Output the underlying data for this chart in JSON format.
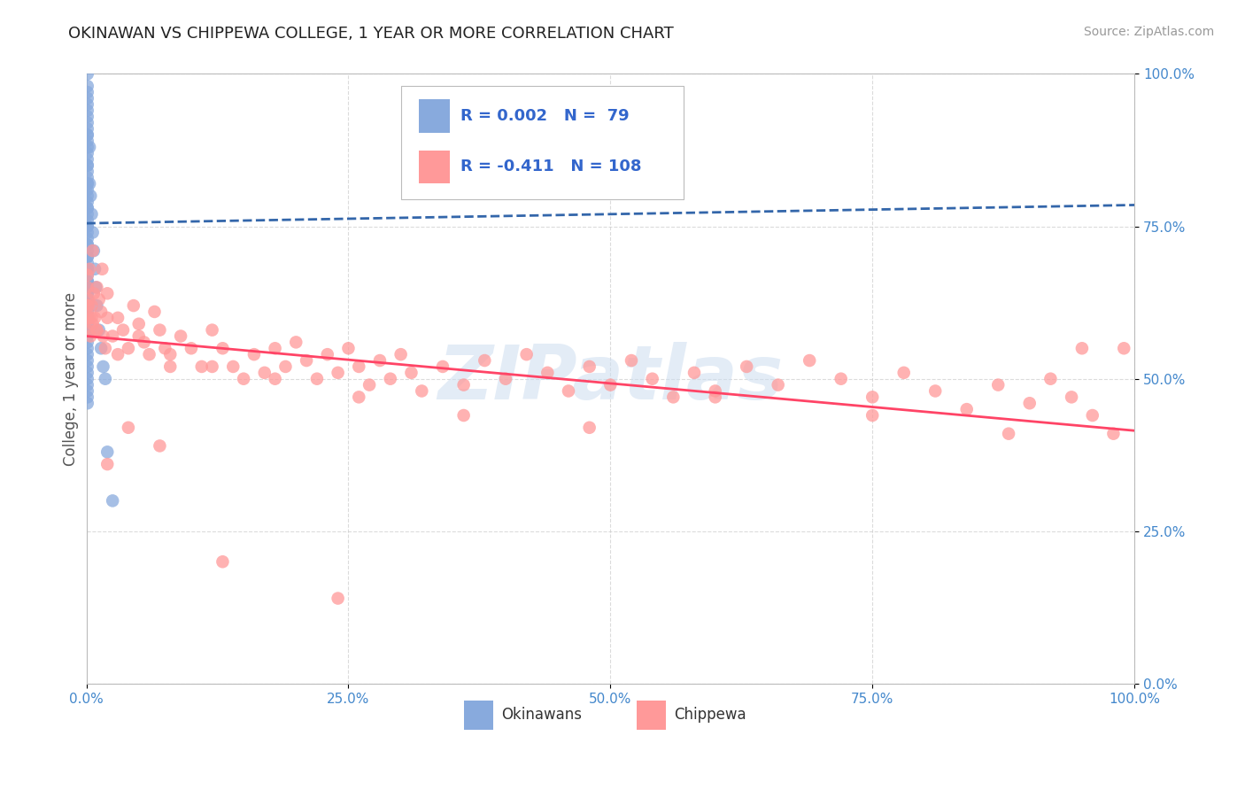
{
  "title": "OKINAWAN VS CHIPPEWA COLLEGE, 1 YEAR OR MORE CORRELATION CHART",
  "source_text": "Source: ZipAtlas.com",
  "ylabel": "College, 1 year or more",
  "xlim": [
    0.0,
    1.0
  ],
  "ylim": [
    0.0,
    1.0
  ],
  "xticks": [
    0.0,
    0.25,
    0.5,
    0.75,
    1.0
  ],
  "yticks": [
    0.0,
    0.25,
    0.5,
    0.75,
    1.0
  ],
  "xticklabels": [
    "0.0%",
    "25.0%",
    "50.0%",
    "75.0%",
    "100.0%"
  ],
  "yticklabels": [
    "0.0%",
    "25.0%",
    "50.0%",
    "75.0%",
    "100.0%"
  ],
  "blue_color": "#88AADD",
  "pink_color": "#FF9999",
  "blue_line_color": "#3366AA",
  "pink_line_color": "#FF4466",
  "grid_color": "#CCCCCC",
  "legend_text_color": "#3366CC",
  "watermark_color": "#CCDDF0",
  "blue_intercept": 0.755,
  "blue_slope": 0.03,
  "pink_intercept": 0.57,
  "pink_slope": -0.155,
  "blue_scatter_x": [
    0.001,
    0.001,
    0.001,
    0.001,
    0.001,
    0.001,
    0.001,
    0.001,
    0.001,
    0.001,
    0.001,
    0.001,
    0.001,
    0.001,
    0.001,
    0.001,
    0.001,
    0.001,
    0.001,
    0.001,
    0.001,
    0.001,
    0.001,
    0.001,
    0.001,
    0.001,
    0.001,
    0.001,
    0.001,
    0.001,
    0.001,
    0.001,
    0.001,
    0.001,
    0.001,
    0.001,
    0.001,
    0.001,
    0.001,
    0.001,
    0.001,
    0.001,
    0.001,
    0.001,
    0.001,
    0.001,
    0.001,
    0.001,
    0.001,
    0.001,
    0.001,
    0.001,
    0.001,
    0.001,
    0.001,
    0.001,
    0.001,
    0.001,
    0.001,
    0.001,
    0.001,
    0.001,
    0.001,
    0.001,
    0.003,
    0.003,
    0.004,
    0.005,
    0.006,
    0.007,
    0.008,
    0.009,
    0.01,
    0.012,
    0.014,
    0.016,
    0.018,
    0.02,
    0.025
  ],
  "blue_scatter_y": [
    1.0,
    0.98,
    0.97,
    0.96,
    0.95,
    0.94,
    0.93,
    0.92,
    0.91,
    0.9,
    0.89,
    0.88,
    0.87,
    0.86,
    0.85,
    0.84,
    0.83,
    0.82,
    0.81,
    0.8,
    0.79,
    0.78,
    0.77,
    0.76,
    0.75,
    0.74,
    0.73,
    0.72,
    0.71,
    0.7,
    0.69,
    0.68,
    0.67,
    0.66,
    0.65,
    0.64,
    0.63,
    0.62,
    0.61,
    0.6,
    0.59,
    0.58,
    0.57,
    0.56,
    0.55,
    0.54,
    0.53,
    0.52,
    0.51,
    0.5,
    0.49,
    0.48,
    0.47,
    0.46,
    0.9,
    0.85,
    0.82,
    0.78,
    0.75,
    0.72,
    0.7,
    0.68,
    0.66,
    0.64,
    0.88,
    0.82,
    0.8,
    0.77,
    0.74,
    0.71,
    0.68,
    0.65,
    0.62,
    0.58,
    0.55,
    0.52,
    0.5,
    0.38,
    0.3
  ],
  "pink_scatter_x": [
    0.001,
    0.001,
    0.001,
    0.001,
    0.002,
    0.003,
    0.004,
    0.005,
    0.006,
    0.007,
    0.008,
    0.01,
    0.012,
    0.014,
    0.016,
    0.018,
    0.02,
    0.025,
    0.03,
    0.035,
    0.04,
    0.045,
    0.05,
    0.055,
    0.06,
    0.065,
    0.07,
    0.075,
    0.08,
    0.09,
    0.1,
    0.11,
    0.12,
    0.13,
    0.14,
    0.15,
    0.16,
    0.17,
    0.18,
    0.19,
    0.2,
    0.21,
    0.22,
    0.23,
    0.24,
    0.25,
    0.26,
    0.27,
    0.28,
    0.29,
    0.3,
    0.31,
    0.32,
    0.34,
    0.36,
    0.38,
    0.4,
    0.42,
    0.44,
    0.46,
    0.48,
    0.5,
    0.52,
    0.54,
    0.56,
    0.58,
    0.6,
    0.63,
    0.66,
    0.69,
    0.72,
    0.75,
    0.78,
    0.81,
    0.84,
    0.87,
    0.9,
    0.92,
    0.94,
    0.96,
    0.98,
    0.99,
    0.003,
    0.006,
    0.01,
    0.015,
    0.02,
    0.03,
    0.05,
    0.08,
    0.12,
    0.18,
    0.26,
    0.36,
    0.48,
    0.6,
    0.75,
    0.88,
    0.95,
    0.001,
    0.002,
    0.005,
    0.01,
    0.02,
    0.04,
    0.07,
    0.13,
    0.24
  ],
  "pink_scatter_y": [
    0.62,
    0.6,
    0.65,
    0.58,
    0.63,
    0.6,
    0.57,
    0.62,
    0.59,
    0.64,
    0.6,
    0.58,
    0.63,
    0.61,
    0.57,
    0.55,
    0.6,
    0.57,
    0.54,
    0.58,
    0.55,
    0.62,
    0.59,
    0.56,
    0.54,
    0.61,
    0.58,
    0.55,
    0.52,
    0.57,
    0.55,
    0.52,
    0.58,
    0.55,
    0.52,
    0.5,
    0.54,
    0.51,
    0.55,
    0.52,
    0.56,
    0.53,
    0.5,
    0.54,
    0.51,
    0.55,
    0.52,
    0.49,
    0.53,
    0.5,
    0.54,
    0.51,
    0.48,
    0.52,
    0.49,
    0.53,
    0.5,
    0.54,
    0.51,
    0.48,
    0.52,
    0.49,
    0.53,
    0.5,
    0.47,
    0.51,
    0.48,
    0.52,
    0.49,
    0.53,
    0.5,
    0.47,
    0.51,
    0.48,
    0.45,
    0.49,
    0.46,
    0.5,
    0.47,
    0.44,
    0.41,
    0.55,
    0.68,
    0.71,
    0.65,
    0.68,
    0.64,
    0.6,
    0.57,
    0.54,
    0.52,
    0.5,
    0.47,
    0.44,
    0.42,
    0.47,
    0.44,
    0.41,
    0.55,
    0.67,
    0.62,
    0.6,
    0.58,
    0.36,
    0.42,
    0.39,
    0.2,
    0.14
  ]
}
